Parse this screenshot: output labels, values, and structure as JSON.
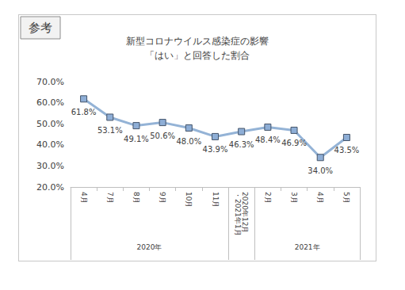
{
  "chart_data": {
    "type": "line",
    "title": "新型コロナウイルス感染症の影響",
    "subtitle": "「はい」と回答した割合",
    "annotations": [
      "参考"
    ],
    "categories": [
      "4月",
      "7月",
      "8月",
      "9月",
      "10月",
      "11月",
      "2020年12月・2021年1月",
      "2月",
      "3月",
      "4月",
      "5月"
    ],
    "x_groups": [
      {
        "label": "2020年",
        "span": 6
      },
      {
        "label": null,
        "span": 1
      },
      {
        "label": "2021年",
        "span": 4
      }
    ],
    "values": [
      61.8,
      53.1,
      49.1,
      50.6,
      48.0,
      43.9,
      46.3,
      48.4,
      46.9,
      34.0,
      43.5
    ],
    "value_labels": [
      "61.8%",
      "53.1%",
      "49.1%",
      "50.6%",
      "48.0%",
      "43.9%",
      "46.3%",
      "48.4%",
      "46.9%",
      "34.0%",
      "43.5%"
    ],
    "color": "#94b3d6",
    "marker": "square",
    "ylim": [
      20,
      70
    ],
    "yticks": [
      {
        "value": 20,
        "label": "20.0%"
      },
      {
        "value": 30,
        "label": "30.0%"
      },
      {
        "value": 40,
        "label": "40.0%"
      },
      {
        "value": 50,
        "label": "50.0%"
      },
      {
        "value": 60,
        "label": "60.0%"
      },
      {
        "value": 70,
        "label": "70.0%"
      }
    ],
    "grid": false,
    "data_labels": true
  }
}
